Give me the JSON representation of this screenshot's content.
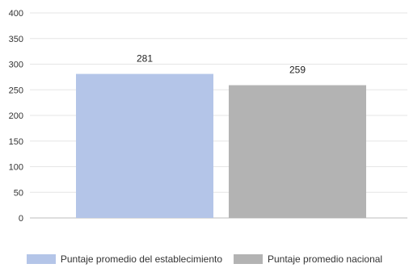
{
  "chart_data": {
    "type": "bar",
    "categories": [
      "Puntaje promedio del establecimiento",
      "Puntaje promedio nacional"
    ],
    "values": [
      281,
      259
    ],
    "data_labels": [
      "281",
      "259"
    ],
    "colors": [
      "#b4c5e8",
      "#b3b3b3"
    ],
    "ylim": [
      0,
      400
    ],
    "yticks": [
      0,
      50,
      100,
      150,
      200,
      250,
      300,
      350,
      400
    ],
    "grid": true,
    "legend_position": "bottom",
    "title": "",
    "xlabel": "",
    "ylabel": ""
  },
  "legend": {
    "items": [
      {
        "label": "Puntaje promedio del establecimiento",
        "color": "#b4c5e8"
      },
      {
        "label": "Puntaje promedio nacional",
        "color": "#b3b3b3"
      }
    ]
  }
}
